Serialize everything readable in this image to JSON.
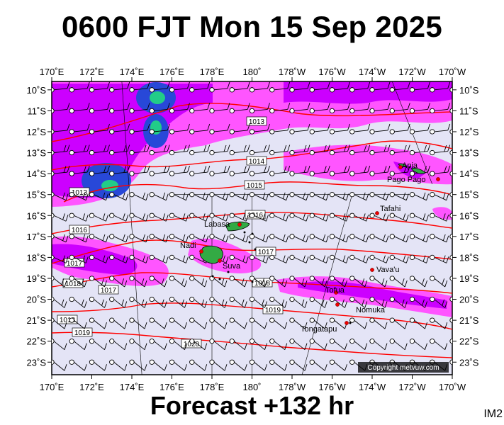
{
  "title": "0600 FJT Mon 15 Sep 2025",
  "footer": "Forecast +132 hr",
  "image_code": "IM2",
  "copyright": "Copyright metvuw.com",
  "axes": {
    "lon_labels": [
      "170˚E",
      "172˚E",
      "174˚E",
      "176˚E",
      "178˚E",
      "180˚",
      "178˚W",
      "176˚W",
      "174˚W",
      "172˚W",
      "170˚W"
    ],
    "lat_labels": [
      "10˚S",
      "11˚S",
      "12˚S",
      "13˚S",
      "14˚S",
      "15˚S",
      "16˚S",
      "17˚S",
      "18˚S",
      "19˚S",
      "20˚S",
      "21˚S",
      "22˚S",
      "23˚S"
    ]
  },
  "places": [
    {
      "name": "Apia",
      "lon": -171.8,
      "lat": -13.8
    },
    {
      "name": "Pago Pago",
      "lon": -170.7,
      "lat": -14.3
    },
    {
      "name": "Tafahi",
      "lon": -173.7,
      "lat": -15.9
    },
    {
      "name": "Labasa",
      "lon": 179.4,
      "lat": -16.4
    },
    {
      "name": "Nadi",
      "lon": 177.4,
      "lat": -17.8
    },
    {
      "name": "Suva",
      "lon": 178.4,
      "lat": -18.1
    },
    {
      "name": "Vava'u",
      "lon": -174.0,
      "lat": -18.7
    },
    {
      "name": "Tofua",
      "lon": -175.1,
      "lat": -19.7
    },
    {
      "name": "Nomuka",
      "lon": -174.8,
      "lat": -20.3
    },
    {
      "name": "Tongatapu",
      "lon": -175.2,
      "lat": -21.1
    }
  ],
  "isobar_labels": [
    "1013",
    "1014",
    "1015",
    "1016",
    "1017",
    "1018",
    "1019",
    "1020"
  ],
  "colors": {
    "background": "#e4e4f6",
    "rain_light": "#ff55ff",
    "rain_mid": "#cc00ff",
    "rain_heavy": "#2848d8",
    "rain_core": "#22cc88",
    "isobar": "#ff0000",
    "land": "#33aa44",
    "town": "#ee0000"
  }
}
